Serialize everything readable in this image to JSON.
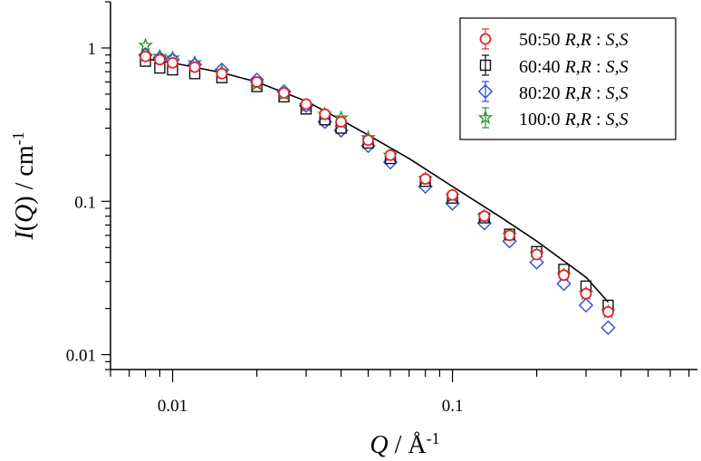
{
  "chart_data": {
    "type": "scatter",
    "xscale": "log",
    "yscale": "log",
    "xlim": [
      0.006,
      0.75
    ],
    "ylim": [
      0.008,
      2.0
    ],
    "x_ticks": [
      {
        "value": 0.01,
        "label": "0.01"
      },
      {
        "value": 0.1,
        "label": "0.1"
      }
    ],
    "y_ticks": [
      {
        "value": 0.01,
        "label": "0.01"
      },
      {
        "value": 0.1,
        "label": "0.1"
      },
      {
        "value": 1,
        "label": "1"
      }
    ],
    "xlabel": {
      "var": "Q",
      "sep": " / ",
      "unit": "Å",
      "sup": "-1"
    },
    "ylabel": {
      "fn": "I",
      "open": "(",
      "var": "Q",
      "close": ")",
      "sep": " / ",
      "unit": "cm",
      "sup": "-1"
    },
    "legend_position": "top-right",
    "series": [
      {
        "name": "50:50",
        "rr": "R,R",
        "colon": " : ",
        "ss": "S,S",
        "marker": "circle",
        "color": "#e8232a",
        "x": [
          0.008,
          0.009,
          0.01,
          0.012,
          0.015,
          0.02,
          0.025,
          0.03,
          0.035,
          0.04,
          0.05,
          0.06,
          0.08,
          0.1,
          0.13,
          0.16,
          0.2,
          0.25,
          0.3,
          0.36
        ],
        "y": [
          0.88,
          0.84,
          0.8,
          0.75,
          0.68,
          0.6,
          0.51,
          0.43,
          0.37,
          0.33,
          0.25,
          0.2,
          0.14,
          0.11,
          0.08,
          0.06,
          0.045,
          0.033,
          0.025,
          0.019
        ]
      },
      {
        "name": "60:40",
        "rr": "R,R",
        "colon": " : ",
        "ss": "S,S",
        "marker": "square",
        "color": "#111111",
        "x": [
          0.008,
          0.009,
          0.01,
          0.012,
          0.015,
          0.02,
          0.025,
          0.03,
          0.035,
          0.04,
          0.05,
          0.06,
          0.08,
          0.1,
          0.13,
          0.16,
          0.2,
          0.25,
          0.3,
          0.36
        ],
        "y": [
          0.82,
          0.74,
          0.72,
          0.68,
          0.64,
          0.56,
          0.48,
          0.4,
          0.34,
          0.3,
          0.24,
          0.19,
          0.135,
          0.105,
          0.078,
          0.061,
          0.047,
          0.036,
          0.028,
          0.021
        ]
      },
      {
        "name": "80:20",
        "rr": "R,R",
        "colon": " : ",
        "ss": "S,S",
        "marker": "diamond",
        "color": "#2b4bd8",
        "x": [
          0.008,
          0.009,
          0.01,
          0.012,
          0.015,
          0.02,
          0.025,
          0.03,
          0.035,
          0.04,
          0.05,
          0.06,
          0.08,
          0.1,
          0.13,
          0.16,
          0.2,
          0.25,
          0.3,
          0.36
        ],
        "y": [
          0.9,
          0.86,
          0.84,
          0.78,
          0.72,
          0.62,
          0.52,
          0.42,
          0.33,
          0.29,
          0.23,
          0.18,
          0.125,
          0.097,
          0.072,
          0.055,
          0.04,
          0.029,
          0.021,
          0.015
        ]
      },
      {
        "name": "100:0",
        "rr": "R,R",
        "colon": " : ",
        "ss": "S,S",
        "marker": "star",
        "color": "#2e8b2e",
        "x": [
          0.008,
          0.009,
          0.01,
          0.012,
          0.015,
          0.02,
          0.025,
          0.03,
          0.035,
          0.04,
          0.05,
          0.06,
          0.08,
          0.1,
          0.13,
          0.16,
          0.2,
          0.25,
          0.3,
          0.36
        ],
        "y": [
          1.04,
          0.88,
          0.86,
          0.8,
          0.7,
          0.58,
          0.5,
          0.42,
          0.37,
          0.35,
          0.26,
          0.2,
          0.14,
          0.108,
          0.08,
          0.06,
          0.045,
          0.033,
          0.025,
          0.019
        ]
      }
    ],
    "fit_line": {
      "color": "#000000",
      "x": [
        0.008,
        0.01,
        0.015,
        0.02,
        0.03,
        0.04,
        0.05,
        0.07,
        0.1,
        0.15,
        0.2,
        0.3,
        0.36
      ],
      "y": [
        0.85,
        0.8,
        0.69,
        0.6,
        0.45,
        0.34,
        0.27,
        0.19,
        0.125,
        0.078,
        0.055,
        0.032,
        0.022
      ]
    }
  }
}
